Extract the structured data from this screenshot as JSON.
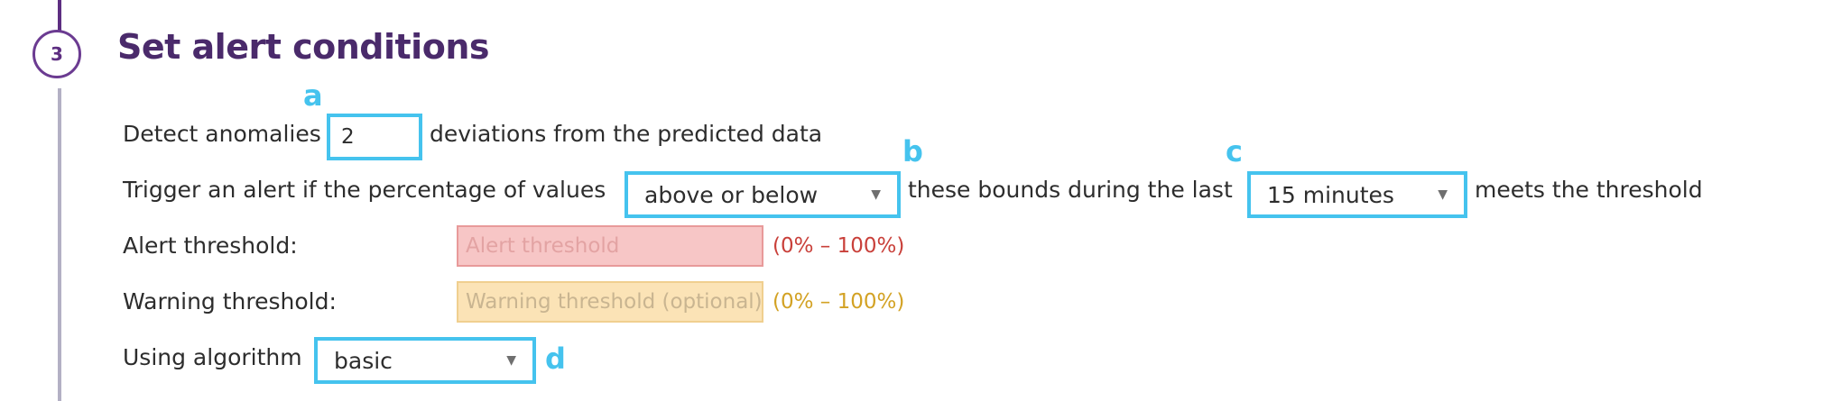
{
  "step": {
    "number": "3",
    "title": "Set alert conditions"
  },
  "detect_row": {
    "prefix": "Detect anomalies",
    "deviations_value": "2",
    "suffix": "deviations from the predicted data"
  },
  "trigger_row": {
    "prefix": "Trigger an alert if the percentage of values",
    "bounds_select": "above or below",
    "middle": "these bounds during the last",
    "window_select": "15 minutes",
    "suffix": "meets the threshold"
  },
  "alert_threshold": {
    "label": "Alert threshold:",
    "placeholder": "Alert threshold",
    "range": "(0% – 100%)"
  },
  "warning_threshold": {
    "label": "Warning threshold:",
    "placeholder": "Warning threshold (optional)",
    "range": "(0% – 100%)"
  },
  "algorithm_row": {
    "label": "Using algorithm",
    "algorithm_select": "basic"
  },
  "callouts": {
    "a": "a",
    "b": "b",
    "c": "c",
    "d": "d"
  },
  "colors": {
    "brand_purple": "#5d2e81",
    "callout_blue": "#45c3ee",
    "alert_red": "#c9403a",
    "warning_amber": "#d3a224"
  },
  "icons": {
    "dropdown": "chevron-down-icon"
  }
}
